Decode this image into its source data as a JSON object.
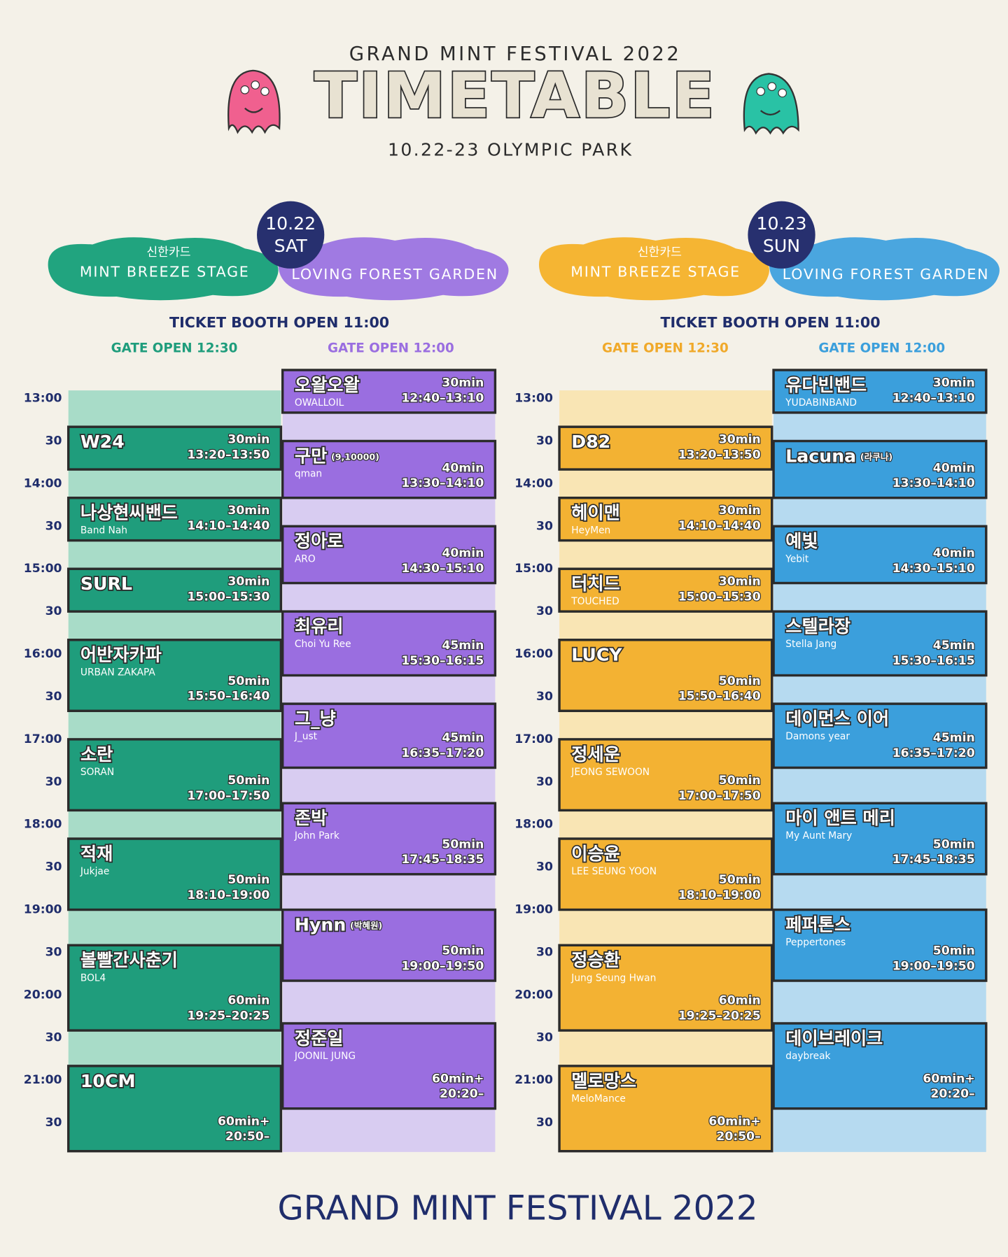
{
  "header": {
    "title_top": "GRAND MINT FESTIVAL 2022",
    "title": "TIMETABLE",
    "subtitle": "10.22-23 OLYMPIC PARK"
  },
  "times": [
    "13:00",
    "30",
    "14:00",
    "30",
    "15:00",
    "30",
    "16:00",
    "30",
    "17:00",
    "30",
    "18:00",
    "30",
    "19:00",
    "30",
    "20:00",
    "30",
    "21:00",
    "30"
  ],
  "days": [
    {
      "date": "10.22",
      "day": "SAT",
      "ticket_booth": "TICKET BOOTH OPEN 11:00",
      "stages": [
        {
          "sponsor": "신한카드",
          "name": "MINT BREEZE STAGE",
          "gate_open": "GATE OPEN 12:30",
          "acts": [
            {
              "name": "W24",
              "duration": "30min",
              "time": "13:20–13:50"
            },
            {
              "name": "나상현씨밴드",
              "sub": "Band Nah",
              "duration": "30min",
              "time": "14:10–14:40"
            },
            {
              "name": "SURL",
              "duration": "30min",
              "time": "15:00–15:30"
            },
            {
              "name": "어반자카파",
              "sub": "URBAN ZAKAPA",
              "duration": "50min",
              "time": "15:50–16:40"
            },
            {
              "name": "소란",
              "sub": "SORAN",
              "duration": "50min",
              "time": "17:00–17:50"
            },
            {
              "name": "적재",
              "sub": "Jukjae",
              "duration": "50min",
              "time": "18:10–19:00"
            },
            {
              "name": "볼빨간사춘기",
              "sub": "BOL4",
              "duration": "60min",
              "time": "19:25–20:25"
            },
            {
              "name": "10CM",
              "duration": "60min+",
              "time": "20:50–"
            }
          ]
        },
        {
          "name": "LOVING FOREST GARDEN",
          "gate_open": "GATE OPEN 12:00",
          "acts": [
            {
              "name": "오왈오왈",
              "sub": "OWALLOIL",
              "duration": "30min",
              "time": "12:40–13:10"
            },
            {
              "name": "구만",
              "note": "(9,10000)",
              "sub": "qman",
              "duration": "40min",
              "time": "13:30–14:10"
            },
            {
              "name": "정아로",
              "sub": "ARO",
              "duration": "40min",
              "time": "14:30–15:10"
            },
            {
              "name": "최유리",
              "sub": "Choi Yu Ree",
              "duration": "45min",
              "time": "15:30–16:15"
            },
            {
              "name": "그_냥",
              "sub": "J_ust",
              "duration": "45min",
              "time": "16:35–17:20"
            },
            {
              "name": "존박",
              "sub": "John Park",
              "duration": "50min",
              "time": "17:45–18:35"
            },
            {
              "name": "Hynn",
              "note": "(박혜원)",
              "duration": "50min",
              "time": "19:00–19:50"
            },
            {
              "name": "정준일",
              "sub": "JOONIL JUNG",
              "duration": "60min+",
              "time": "20:20–"
            }
          ]
        }
      ]
    },
    {
      "date": "10.23",
      "day": "SUN",
      "ticket_booth": "TICKET BOOTH OPEN 11:00",
      "stages": [
        {
          "sponsor": "신한카드",
          "name": "MINT BREEZE STAGE",
          "gate_open": "GATE OPEN 12:30",
          "acts": [
            {
              "name": "D82",
              "duration": "30min",
              "time": "13:20–13:50"
            },
            {
              "name": "헤이맨",
              "sub": "HeyMen",
              "duration": "30min",
              "time": "14:10–14:40"
            },
            {
              "name": "터치드",
              "sub": "TOUCHED",
              "duration": "30min",
              "time": "15:00–15:30"
            },
            {
              "name": "LUCY",
              "duration": "50min",
              "time": "15:50–16:40"
            },
            {
              "name": "정세운",
              "sub": "JEONG SEWOON",
              "duration": "50min",
              "time": "17:00–17:50"
            },
            {
              "name": "이승윤",
              "sub": "LEE SEUNG YOON",
              "duration": "50min",
              "time": "18:10–19:00"
            },
            {
              "name": "정승환",
              "sub": "Jung Seung Hwan",
              "duration": "60min",
              "time": "19:25–20:25"
            },
            {
              "name": "멜로망스",
              "sub": "MeloMance",
              "duration": "60min+",
              "time": "20:50–"
            }
          ]
        },
        {
          "name": "LOVING FOREST GARDEN",
          "gate_open": "GATE OPEN 12:00",
          "acts": [
            {
              "name": "유다빈밴드",
              "sub": "YUDABINBAND",
              "duration": "30min",
              "time": "12:40–13:10"
            },
            {
              "name": "Lacuna",
              "note": "(라쿠나)",
              "duration": "40min",
              "time": "13:30–14:10"
            },
            {
              "name": "예빛",
              "sub": "Yebit",
              "duration": "40min",
              "time": "14:30–15:10"
            },
            {
              "name": "스텔라장",
              "sub": "Stella Jang",
              "duration": "45min",
              "time": "15:30–16:15"
            },
            {
              "name": "데이먼스 이어",
              "sub": "Damons year",
              "duration": "45min",
              "time": "16:35–17:20"
            },
            {
              "name": "마이 앤트 메리",
              "sub": "My Aunt Mary",
              "duration": "50min",
              "time": "17:45–18:35"
            },
            {
              "name": "페퍼톤스",
              "sub": "Peppertones",
              "duration": "50min",
              "time": "19:00–19:50"
            },
            {
              "name": "데이브레이크",
              "sub": "daybreak",
              "duration": "60min+",
              "time": "20:20–"
            }
          ]
        }
      ]
    }
  ],
  "footer": "GRAND MINT FESTIVAL 2022"
}
